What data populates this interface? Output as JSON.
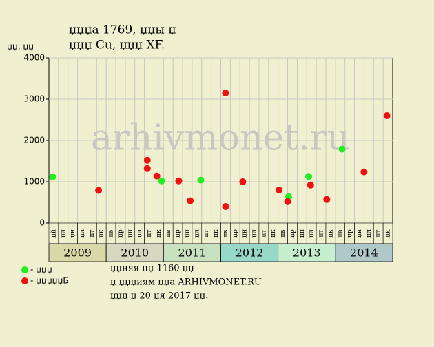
{
  "chart_data": {
    "type": "scatter",
    "title": "џџџа 1769, џџы џ",
    "subtitle": "џџџ Cu, џџџ XF.",
    "y_label": "џџ, џџ",
    "watermark": "arhivmonet.ru",
    "ylim": [
      0,
      4000
    ],
    "yticks": [
      0,
      1000,
      2000,
      3000,
      4000
    ],
    "xlim": [
      0,
      36
    ],
    "grid": true,
    "column_labels": [
      "џй",
      "џл",
      "џн",
      "џл",
      "џт",
      "џк",
      "џв",
      "џр",
      "џн",
      "џл",
      "џт",
      "џк",
      "џв",
      "џр",
      "џн",
      "џл",
      "џт",
      "џк",
      "џв",
      "џр",
      "џн",
      "џл",
      "џт",
      "џк",
      "џв",
      "џр",
      "џн",
      "џл",
      "џт",
      "џк",
      "џв",
      "џр",
      "џн",
      "џл",
      "џт",
      "џк"
    ],
    "years": [
      "2009",
      "2010",
      "2011",
      "2012",
      "2013",
      "2014"
    ],
    "year_colors": [
      "#d8d8a8",
      "#d8d8c0",
      "#c8e2c0",
      "#98d8c8",
      "#c8eed0",
      "#b0c8c8"
    ],
    "series": [
      {
        "name": "- џџџ",
        "color": "#22ee22",
        "x": [
          0.4,
          11.8,
          15.9,
          25.1,
          27.2,
          30.7
        ],
        "values": [
          1120,
          1020,
          1040,
          640,
          1130,
          1790
        ]
      },
      {
        "name": "- џџџџџБ",
        "color": "#ee1111",
        "x": [
          5.2,
          10.3,
          10.3,
          11.3,
          13.6,
          14.8,
          18.5,
          18.5,
          20.3,
          24.1,
          25.0,
          27.4,
          29.1,
          33.0,
          35.4
        ],
        "values": [
          790,
          1520,
          1320,
          1140,
          1020,
          540,
          3150,
          400,
          1000,
          800,
          520,
          920,
          570,
          1240,
          2600
        ]
      }
    ],
    "notes": [
      "џџняя џџ 1160 џџ",
      "џ џџџиям џџа ARHIVMONET.RU",
      "џџџ џ 20 џя 2017 џџ."
    ]
  }
}
